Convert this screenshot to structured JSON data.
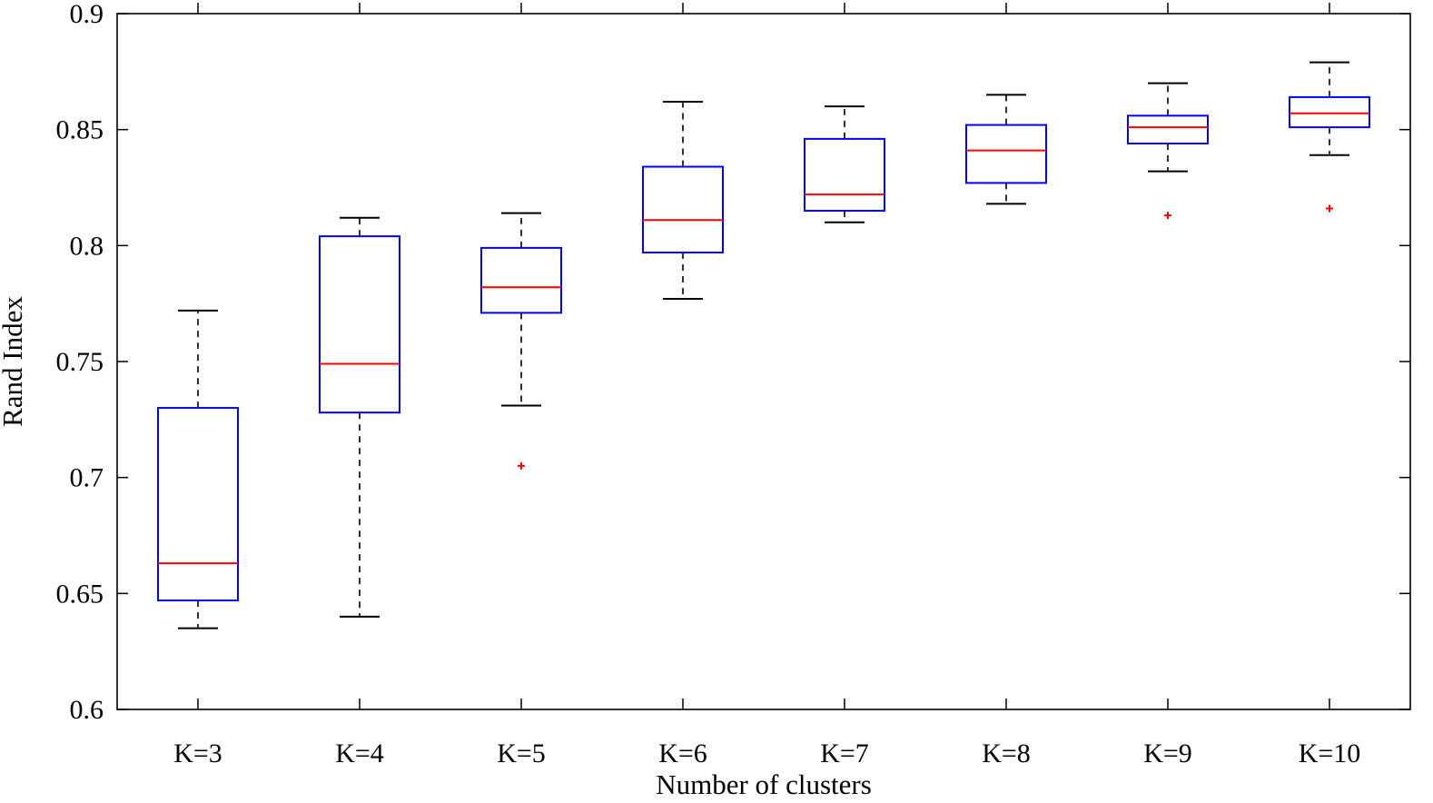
{
  "chart_data": {
    "type": "box",
    "title": "",
    "xlabel": "Number of clusters",
    "ylabel": "Rand Index",
    "ylim": [
      0.6,
      0.9
    ],
    "yticks": [
      0.6,
      0.65,
      0.7,
      0.75,
      0.8,
      0.85,
      0.9
    ],
    "ytick_labels": [
      "0.6",
      "0.65",
      "0.7",
      "0.75",
      "0.8",
      "0.85",
      "0.9"
    ],
    "categories": [
      "K=3",
      "K=4",
      "K=5",
      "K=6",
      "K=7",
      "K=8",
      "K=9",
      "K=10"
    ],
    "boxes": [
      {
        "category": "K=3",
        "whisker_low": 0.635,
        "q1": 0.647,
        "median": 0.663,
        "q3": 0.73,
        "whisker_high": 0.772,
        "outliers": []
      },
      {
        "category": "K=4",
        "whisker_low": 0.64,
        "q1": 0.728,
        "median": 0.749,
        "q3": 0.804,
        "whisker_high": 0.812,
        "outliers": []
      },
      {
        "category": "K=5",
        "whisker_low": 0.731,
        "q1": 0.771,
        "median": 0.782,
        "q3": 0.799,
        "whisker_high": 0.814,
        "outliers": [
          0.705
        ]
      },
      {
        "category": "K=6",
        "whisker_low": 0.777,
        "q1": 0.797,
        "median": 0.811,
        "q3": 0.834,
        "whisker_high": 0.862,
        "outliers": []
      },
      {
        "category": "K=7",
        "whisker_low": 0.81,
        "q1": 0.815,
        "median": 0.822,
        "q3": 0.846,
        "whisker_high": 0.86,
        "outliers": []
      },
      {
        "category": "K=8",
        "whisker_low": 0.818,
        "q1": 0.827,
        "median": 0.841,
        "q3": 0.852,
        "whisker_high": 0.865,
        "outliers": []
      },
      {
        "category": "K=9",
        "whisker_low": 0.832,
        "q1": 0.844,
        "median": 0.851,
        "q3": 0.856,
        "whisker_high": 0.87,
        "outliers": [
          0.813
        ]
      },
      {
        "category": "K=10",
        "whisker_low": 0.839,
        "q1": 0.851,
        "median": 0.857,
        "q3": 0.864,
        "whisker_high": 0.879,
        "outliers": [
          0.816
        ]
      }
    ],
    "colors": {
      "box": "#0000ff",
      "median": "#ff0000",
      "whisker": "#000000",
      "outlier": "#ff0000",
      "axes": "#000000"
    },
    "grid": false,
    "legend": "none"
  }
}
